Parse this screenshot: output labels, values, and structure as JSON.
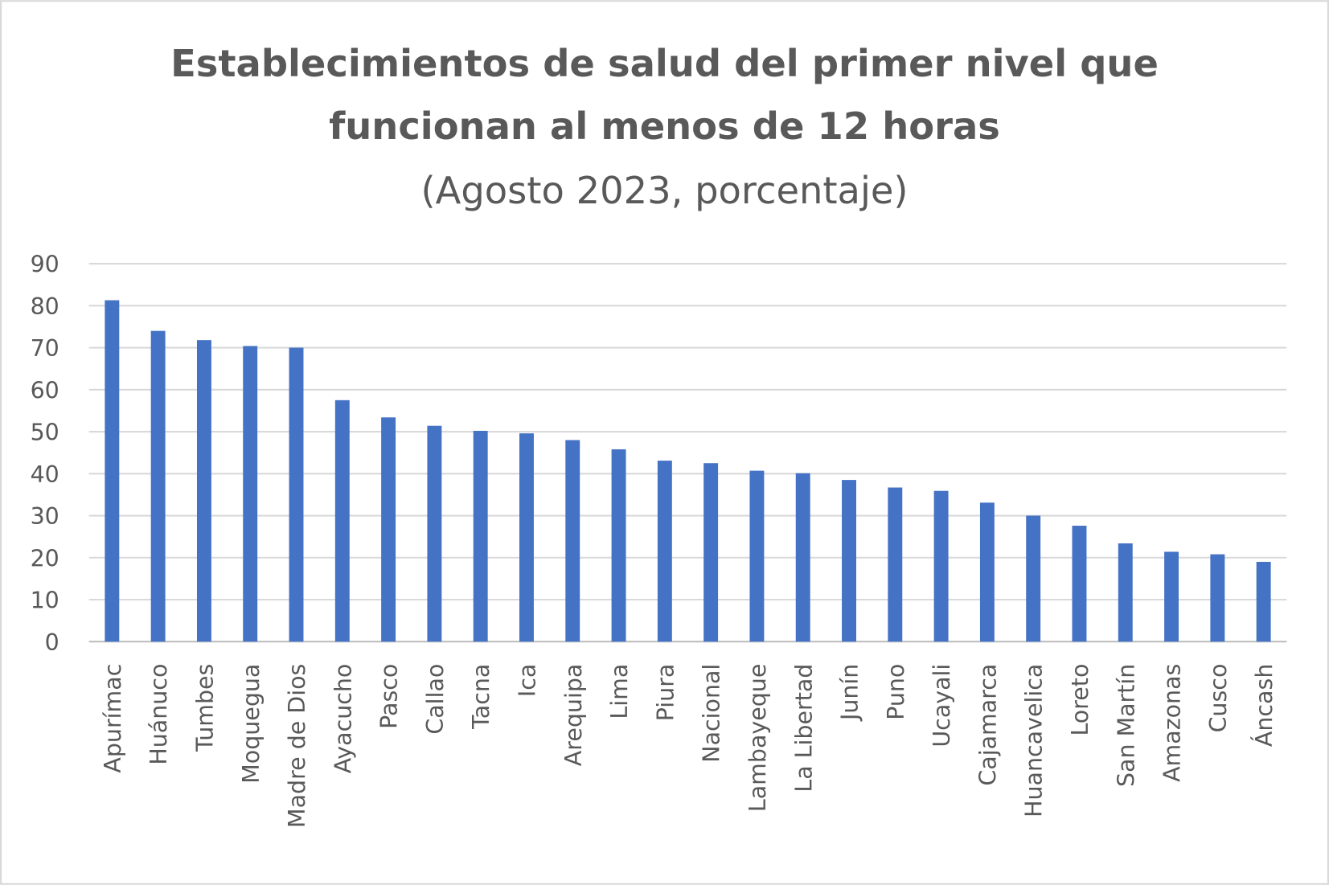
{
  "chart_data": {
    "type": "bar",
    "title_lines": [
      "Establecimientos de salud del primer nivel que",
      "funcionan al menos de 12 horas"
    ],
    "subtitle": "(Agosto 2023, porcentaje)",
    "xlabel": "",
    "ylabel": "",
    "ylim": [
      0,
      90
    ],
    "yticks": [
      0,
      10,
      20,
      30,
      40,
      50,
      60,
      70,
      80,
      90
    ],
    "grid": true,
    "legend": "none",
    "bar_color": "#4472C4",
    "categories": [
      "Apurímac",
      "Huánuco",
      "Tumbes",
      "Moquegua",
      "Madre de Dios",
      "Ayacucho",
      "Pasco",
      "Callao",
      "Tacna",
      "Ica",
      "Arequipa",
      "Lima",
      "Piura",
      "Nacional",
      "Lambayeque",
      "La Libertad",
      "Junín",
      "Puno",
      "Ucayali",
      "Cajamarca",
      "Huancavelica",
      "Loreto",
      "San Martín",
      "Amazonas",
      "Cusco",
      "Áncash"
    ],
    "values": [
      81.3,
      74.0,
      71.8,
      70.4,
      70.0,
      57.5,
      53.4,
      51.4,
      50.2,
      49.6,
      48.0,
      45.8,
      43.1,
      42.5,
      40.7,
      40.1,
      38.5,
      36.7,
      35.9,
      33.1,
      30.0,
      27.6,
      23.4,
      21.4,
      20.8,
      19.0
    ]
  }
}
